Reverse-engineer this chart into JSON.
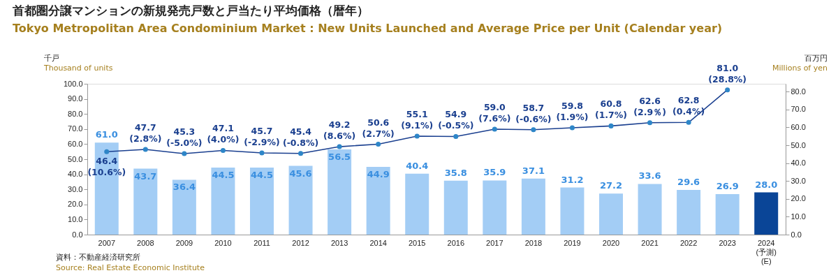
{
  "chart_data": {
    "type": "bar",
    "title": "首都圏分譲マンションの新規発売戸数と戸当たり平均価格（暦年）",
    "subtitle": "Tokyo Metropolitan Area Condominium Market : New Units Launched and Average Price per Unit (Calendar year)",
    "ylabel": "千戸\nThousand of units",
    "y2label": "百万円\nMillions of yen",
    "annotations": [
      "資料：不動産経済研究所",
      "Source: Real Estate Economic Institute"
    ],
    "categories": [
      "2007",
      "2008",
      "2009",
      "2010",
      "2011",
      "2012",
      "2013",
      "2014",
      "2015",
      "2016",
      "2017",
      "2018",
      "2019",
      "2020",
      "2021",
      "2022",
      "2023",
      "2024\n(予測)\n(E)"
    ],
    "series": [
      {
        "value_labels": [
          "61.0",
          "43.7",
          "36.4",
          "44.5",
          "44.5",
          "45.6",
          "56.5",
          "44.9",
          "40.4",
          "35.8",
          "35.9",
          "37.1",
          "31.2",
          "27.2",
          "33.6",
          "29.6",
          "26.9",
          "28.0"
        ],
        "values": [
          61.0,
          43.7,
          36.4,
          44.5,
          44.5,
          45.6,
          56.5,
          44.9,
          40.4,
          35.8,
          35.9,
          37.1,
          31.2,
          27.2,
          33.6,
          29.6,
          26.9,
          28.0
        ],
        "colors": [
          "#a3cdf5",
          "#a3cdf5",
          "#a3cdf5",
          "#a3cdf5",
          "#a3cdf5",
          "#a3cdf5",
          "#a3cdf5",
          "#a3cdf5",
          "#a3cdf5",
          "#a3cdf5",
          "#a3cdf5",
          "#a3cdf5",
          "#a3cdf5",
          "#a3cdf5",
          "#a3cdf5",
          "#a3cdf5",
          "#a3cdf5",
          "#0a4597"
        ]
      },
      {
        "type": "line",
        "axis": "y2",
        "color": "#1a3f8f",
        "values": [
          46.4,
          47.7,
          45.3,
          47.1,
          45.7,
          45.4,
          49.2,
          50.6,
          55.1,
          54.9,
          59.0,
          58.7,
          59.8,
          60.8,
          62.6,
          62.8,
          81.0,
          null
        ],
        "value_labels": [
          "46.4\n(10.6%)",
          "47.7\n(2.8%)",
          "45.3\n(-5.0%)",
          "47.1\n(4.0%)",
          "45.7\n(-2.9%)",
          "45.4\n(-0.8%)",
          "49.2\n(8.6%)",
          "50.6\n(2.7%)",
          "55.1\n(9.1%)",
          "54.9\n(-0.5%)",
          "59.0\n(7.6%)",
          "58.7\n(-0.6%)",
          "59.8\n(1.9%)",
          "60.8\n(1.7%)",
          "62.6\n(2.9％)",
          "62.8\n(0.4%)",
          "81.0\n(28.8%)",
          null
        ]
      }
    ],
    "data_labels": true,
    "marker": "circle",
    "grid": false,
    "ylim": [
      0,
      100
    ],
    "yticks": [
      {
        "value": 0,
        "label": "0.0"
      },
      {
        "value": 10,
        "label": "10.0"
      },
      {
        "value": 20,
        "label": "20.0"
      },
      {
        "value": 30,
        "label": "30.0"
      },
      {
        "value": 40,
        "label": "40.0"
      },
      {
        "value": 50,
        "label": "50.0"
      },
      {
        "value": 60,
        "label": "60.0"
      },
      {
        "value": 70,
        "label": "70.0"
      },
      {
        "value": 80,
        "label": "80.0"
      },
      {
        "value": 90,
        "label": "90.0"
      },
      {
        "value": 100,
        "label": "100.0"
      }
    ],
    "y2lim": [
      0,
      84.4
    ],
    "y2ticks": [
      {
        "value": 0,
        "label": "0.0"
      },
      {
        "value": 10,
        "label": "10.0"
      },
      {
        "value": 20,
        "label": "20.0"
      },
      {
        "value": 30,
        "label": "30.0"
      },
      {
        "value": 40,
        "label": "40.0"
      },
      {
        "value": 50,
        "label": "50.0"
      },
      {
        "value": 60,
        "label": "60.0"
      },
      {
        "value": 70,
        "label": "70.0"
      },
      {
        "value": 80,
        "label": "80.0"
      }
    ]
  }
}
